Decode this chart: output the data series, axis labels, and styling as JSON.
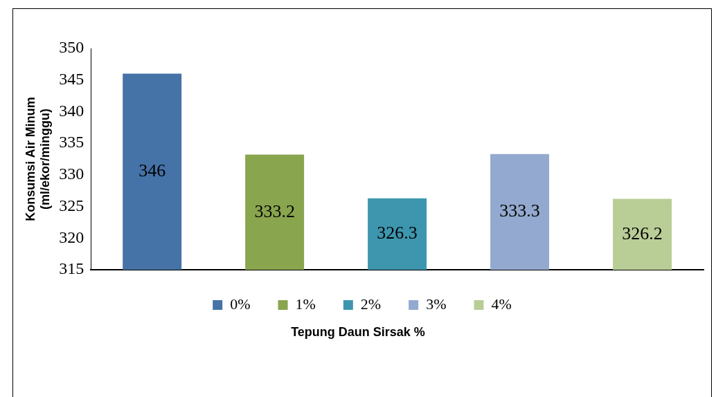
{
  "chart_data": {
    "type": "bar",
    "xlabel": "Tepung Daun Sirsak %",
    "ylabel": "Konsumsi Air Minum\n(ml/ekor/minggu)",
    "categories": [
      null,
      null,
      null,
      null,
      null
    ],
    "series": [
      {
        "name": "0%",
        "color": "#4572a7",
        "values": [
          346,
          null,
          null,
          null,
          null
        ]
      },
      {
        "name": "1%",
        "color": "#89a54e",
        "values": [
          null,
          333.2,
          null,
          null,
          null
        ]
      },
      {
        "name": "2%",
        "color": "#3d96ae",
        "values": [
          null,
          null,
          326.3,
          null,
          null
        ]
      },
      {
        "name": "3%",
        "color": "#93a9cf",
        "values": [
          null,
          null,
          null,
          333.3,
          null
        ]
      },
      {
        "name": "4%",
        "color": "#b9cd96",
        "values": [
          null,
          null,
          null,
          null,
          326.2
        ]
      }
    ],
    "ylim": [
      315,
      350
    ],
    "yticks": [
      315,
      320,
      325,
      330,
      335,
      340,
      345,
      350
    ],
    "data_labels": true,
    "grid": false,
    "legend": "bottom"
  }
}
